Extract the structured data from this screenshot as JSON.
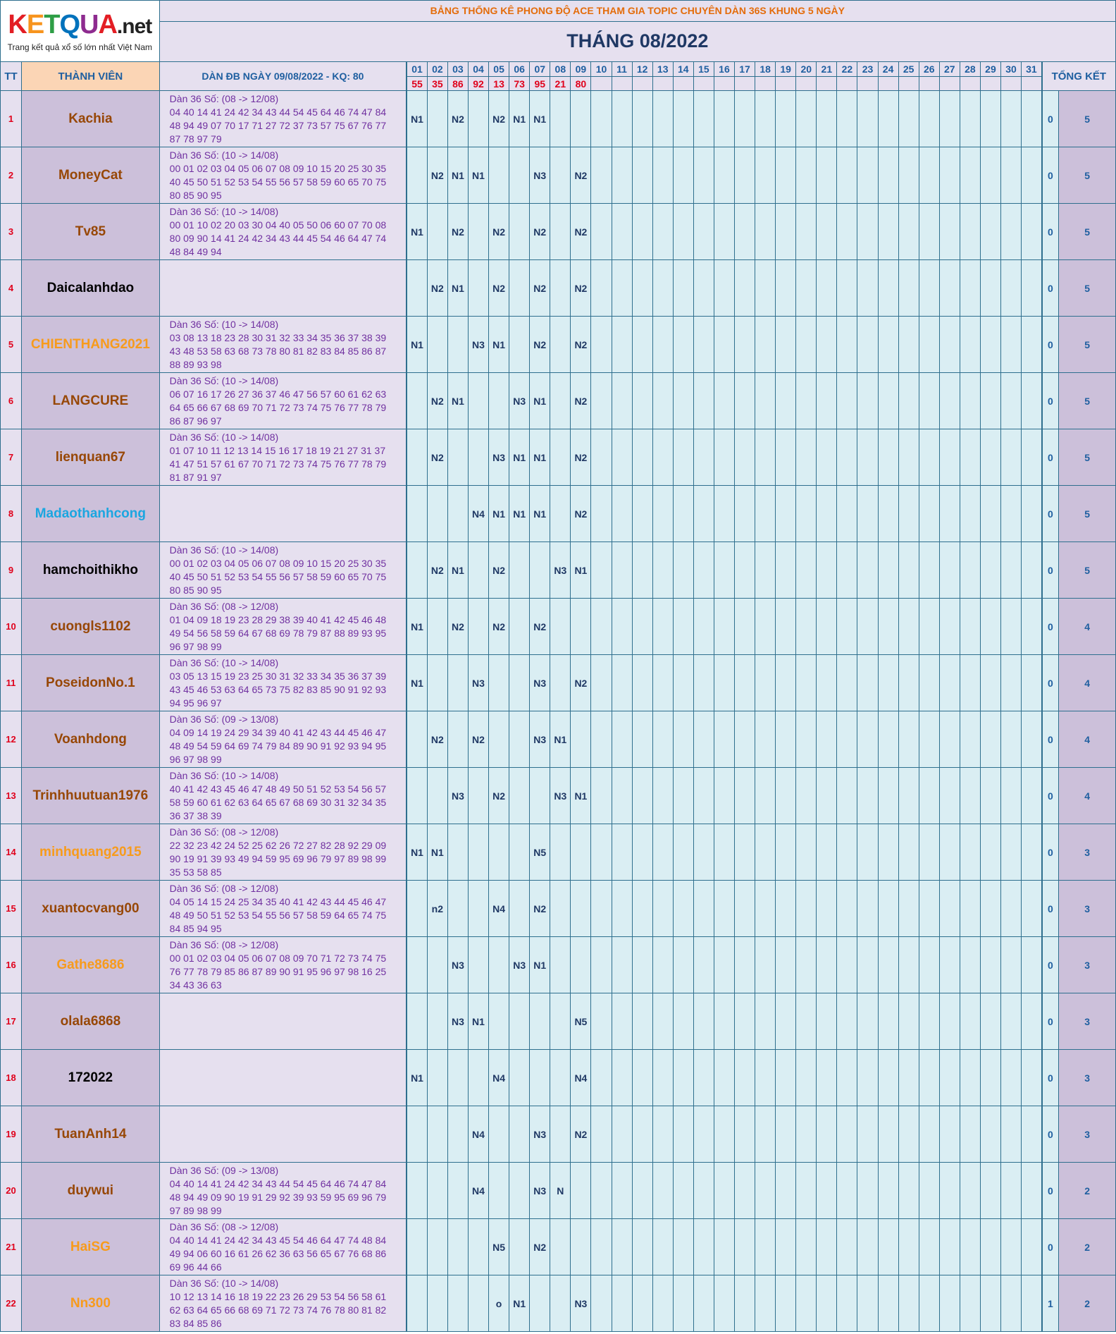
{
  "logo": {
    "brand": [
      "K",
      "E",
      "T",
      "Q",
      "U",
      "A"
    ],
    "tld": ".net",
    "tagline": "Trang kết quả xổ số lớn nhất Việt Nam"
  },
  "header": {
    "title": "BẢNG THỐNG KÊ PHONG ĐỘ ACE THAM GIA TOPIC CHUYÊN DÀN 36S KHUNG 5 NGÀY",
    "month": "THÁNG 08/2022",
    "tt": "TT",
    "member": "THÀNH VIÊN",
    "dan": "DÀN ĐB NGÀY 09/08/2022 - KQ: 80",
    "summary": "TỔNG KẾT"
  },
  "days": [
    "01",
    "02",
    "03",
    "04",
    "05",
    "06",
    "07",
    "08",
    "09",
    "10",
    "11",
    "12",
    "13",
    "14",
    "15",
    "16",
    "17",
    "18",
    "19",
    "20",
    "21",
    "22",
    "23",
    "24",
    "25",
    "26",
    "27",
    "28",
    "29",
    "30",
    "31"
  ],
  "results": [
    "55",
    "35",
    "86",
    "92",
    "13",
    "73",
    "95",
    "21",
    "80"
  ],
  "colors": {
    "brown": "#974706",
    "black": "#000000",
    "orange": "#f79b1c",
    "blue": "#1ca6e0",
    "logo": [
      "#e31e24",
      "#f7941d",
      "#2e9e45",
      "#0072bc",
      "#8e2b8f",
      "#e31e24"
    ]
  },
  "members": [
    {
      "tt": "1",
      "name": "Kachia",
      "color": "brown",
      "dan": [
        "Dàn 36 Số: (08 -> 12/08)",
        "04 40 14 41 24 42 34 43 44 54 45 64 46 74 47 84",
        "48 94 49 07 70 17 71 27 72 37 73 57 75 67 76 77",
        "87 78 97 79"
      ],
      "days": {
        "01": "N1",
        "03": "N2",
        "05": "N2",
        "06": "N1",
        "07": "N1"
      },
      "s1": "0",
      "s2": "5"
    },
    {
      "tt": "2",
      "name": "MoneyCat",
      "color": "brown",
      "dan": [
        "Dàn 36 Số: (10 -> 14/08)",
        "00 01 02 03 04 05 06 07 08 09 10 15 20 25 30 35",
        "40 45 50 51 52 53 54 55 56 57 58 59 60 65 70 75",
        "80 85 90 95"
      ],
      "days": {
        "02": "N2",
        "03": "N1",
        "04": "N1",
        "07": "N3",
        "09": "N2"
      },
      "s1": "0",
      "s2": "5"
    },
    {
      "tt": "3",
      "name": "Tv85",
      "color": "brown",
      "dan": [
        "Dàn 36 Số: (10 -> 14/08)",
        "00 01 10 02 20 03 30 04 40 05 50 06 60 07 70 08",
        "80 09 90 14 41 24 42 34 43 44 45 54 46 64 47 74",
        "48 84 49 94"
      ],
      "days": {
        "01": "N1",
        "03": "N2",
        "05": "N2",
        "07": "N2",
        "09": "N2"
      },
      "s1": "0",
      "s2": "5"
    },
    {
      "tt": "4",
      "name": "Daicalanhdao",
      "color": "black",
      "dan": [],
      "days": {
        "02": "N2",
        "03": "N1",
        "05": "N2",
        "07": "N2",
        "09": "N2"
      },
      "s1": "0",
      "s2": "5"
    },
    {
      "tt": "5",
      "name": "CHIENTHANG2021",
      "color": "orange",
      "dan": [
        "Dàn 36 Số: (10 -> 14/08)",
        "03 08 13 18 23 28 30 31 32 33 34 35 36 37 38 39",
        "43 48 53 58 63 68 73 78 80 81 82 83 84 85 86 87",
        "88 89 93 98"
      ],
      "days": {
        "01": "N1",
        "04": "N3",
        "05": "N1",
        "07": "N2",
        "09": "N2"
      },
      "s1": "0",
      "s2": "5"
    },
    {
      "tt": "6",
      "name": "LANGCURE",
      "color": "brown",
      "dan": [
        "Dàn 36 Số: (10 -> 14/08)",
        "06 07 16 17 26 27 36 37 46 47 56 57 60 61 62 63",
        "64 65 66 67 68 69 70 71 72 73 74 75 76 77 78 79",
        "86 87 96 97"
      ],
      "days": {
        "02": "N2",
        "03": "N1",
        "06": "N3",
        "07": "N1",
        "09": "N2"
      },
      "s1": "0",
      "s2": "5"
    },
    {
      "tt": "7",
      "name": "lienquan67",
      "color": "brown",
      "dan": [
        "Dàn 36 Số: (10 -> 14/08)",
        "01 07 10 11 12 13 14 15 16 17 18 19 21 27 31 37",
        "41 47 51 57 61 67 70 71 72 73 74 75 76 77 78 79",
        "81 87 91 97"
      ],
      "days": {
        "02": "N2",
        "05": "N3",
        "06": "N1",
        "07": "N1",
        "09": "N2"
      },
      "s1": "0",
      "s2": "5"
    },
    {
      "tt": "8",
      "name": "Madaothanhcong",
      "color": "blue",
      "dan": [],
      "days": {
        "04": "N4",
        "05": "N1",
        "06": "N1",
        "07": "N1",
        "09": "N2"
      },
      "s1": "0",
      "s2": "5"
    },
    {
      "tt": "9",
      "name": "hamchoithikho",
      "color": "black",
      "dan": [
        "Dàn 36 Số: (10 -> 14/08)",
        "00 01 02 03 04 05 06 07 08 09 10 15 20 25 30 35",
        "40 45 50 51 52 53 54 55 56 57 58 59 60 65 70 75",
        "80 85 90 95"
      ],
      "days": {
        "02": "N2",
        "03": "N1",
        "05": "N2",
        "08": "N3",
        "09": "N1"
      },
      "s1": "0",
      "s2": "5"
    },
    {
      "tt": "10",
      "name": "cuongls1102",
      "color": "brown",
      "dan": [
        "Dàn 36 Số: (08 -> 12/08)",
        "01 04 09 18 19 23 28 29 38 39 40 41 42 45 46 48",
        "49 54 56 58 59 64 67 68 69 78 79 87 88 89 93 95",
        "96 97 98 99"
      ],
      "days": {
        "01": "N1",
        "03": "N2",
        "05": "N2",
        "07": "N2"
      },
      "s1": "0",
      "s2": "4"
    },
    {
      "tt": "11",
      "name": "PoseidonNo.1",
      "color": "brown",
      "dan": [
        "Dàn 36 Số: (10 -> 14/08)",
        "03 05 13 15 19 23 25 30 31 32 33 34 35 36 37 39",
        "43 45 46 53 63 64 65 73 75 82 83 85 90 91 92 93",
        "94 95 96 97"
      ],
      "days": {
        "01": "N1",
        "04": "N3",
        "07": "N3",
        "09": "N2"
      },
      "s1": "0",
      "s2": "4"
    },
    {
      "tt": "12",
      "name": "Voanhdong",
      "color": "brown",
      "dan": [
        "Dàn 36 Số: (09 -> 13/08)",
        "04 09 14 19 24 29 34 39 40 41 42 43 44 45 46 47",
        "48 49 54 59 64 69 74 79 84 89 90 91 92 93 94 95",
        "96 97 98 99"
      ],
      "days": {
        "02": "N2",
        "04": "N2",
        "07": "N3",
        "08": "N1"
      },
      "s1": "0",
      "s2": "4"
    },
    {
      "tt": "13",
      "name": "Trinhhuutuan1976",
      "color": "brown",
      "dan": [
        "Dàn 36 Số: (10 -> 14/08)",
        "40 41 42 43 45 46 47 48 49 50 51 52 53 54 56 57",
        "58 59 60 61 62 63 64 65 67 68 69 30 31 32 34 35",
        "36 37 38 39"
      ],
      "days": {
        "03": "N3",
        "05": "N2",
        "08": "N3",
        "09": "N1"
      },
      "s1": "0",
      "s2": "4"
    },
    {
      "tt": "14",
      "name": "minhquang2015",
      "color": "orange",
      "dan": [
        "Dàn 36 Số: (08 -> 12/08)",
        "22 32 23 42 24 52 25 62 26 72 27 82 28 92 29 09",
        "90 19 91 39 93 49 94 59 95 69 96 79 97 89 98 99",
        "35 53 58 85"
      ],
      "days": {
        "01": "N1",
        "02": "N1",
        "07": "N5"
      },
      "s1": "0",
      "s2": "3"
    },
    {
      "tt": "15",
      "name": "xuantocvang00",
      "color": "brown",
      "dan": [
        "Dàn 36 Số: (08 -> 12/08)",
        "04 05 14 15 24 25 34 35 40 41 42 43 44 45 46 47",
        "48 49 50 51 52 53 54 55 56 57 58 59 64 65 74 75",
        "84 85 94 95"
      ],
      "days": {
        "02": "n2",
        "05": "N4",
        "07": "N2"
      },
      "s1": "0",
      "s2": "3"
    },
    {
      "tt": "16",
      "name": "Gathe8686",
      "color": "orange",
      "dan": [
        "Dàn 36 Số: (08 -> 12/08)",
        "00 01 02 03 04 05 06 07 08 09 70 71 72 73 74 75",
        "76 77 78 79 85 86 87 89 90 91 95 96 97 98 16 25",
        "34 43 36 63"
      ],
      "days": {
        "03": "N3",
        "06": "N3",
        "07": "N1"
      },
      "s1": "0",
      "s2": "3"
    },
    {
      "tt": "17",
      "name": "olala6868",
      "color": "brown",
      "dan": [],
      "days": {
        "03": "N3",
        "04": "N1",
        "09": "N5"
      },
      "s1": "0",
      "s2": "3"
    },
    {
      "tt": "18",
      "name": "172022",
      "color": "black",
      "dan": [],
      "days": {
        "01": "N1",
        "05": "N4",
        "09": "N4"
      },
      "s1": "0",
      "s2": "3"
    },
    {
      "tt": "19",
      "name": "TuanAnh14",
      "color": "brown",
      "dan": [],
      "days": {
        "04": "N4",
        "07": "N3",
        "09": "N2"
      },
      "s1": "0",
      "s2": "3"
    },
    {
      "tt": "20",
      "name": "duywui",
      "color": "brown",
      "dan": [
        "Dàn 36 Số: (09 -> 13/08)",
        "04 40 14 41 24 42 34 43 44 54 45 64 46 74 47 84",
        "48 94 49 09 90 19 91 29 92 39 93 59 95 69 96 79",
        "97 89 98 99"
      ],
      "days": {
        "04": "N4",
        "07": "N3",
        "08": "N"
      },
      "s1": "0",
      "s2": "2"
    },
    {
      "tt": "21",
      "name": "HaiSG",
      "color": "orange",
      "dan": [
        "Dàn 36 Số: (08 -> 12/08)",
        "04 40 14 41 24 42 34 43 45 54 46 64 47 74 48 84",
        "49 94 06 60 16 61 26 62 36 63 56 65 67 76 68 86",
        "69 96 44 66"
      ],
      "days": {
        "05": "N5",
        "07": "N2"
      },
      "s1": "0",
      "s2": "2"
    },
    {
      "tt": "22",
      "name": "Nn300",
      "color": "orange",
      "dan": [
        "Dàn 36 Số: (10 -> 14/08)",
        "10 12 13 14 16 18 19 22 23 26 29 53 54 56 58 61",
        "62 63 64 65 66 68 69 71 72 73 74 76 78 80 81 82",
        "83 84 85 86"
      ],
      "days": {
        "05": "o",
        "06": "N1",
        "09": "N3"
      },
      "s1": "1",
      "s2": "2"
    }
  ]
}
